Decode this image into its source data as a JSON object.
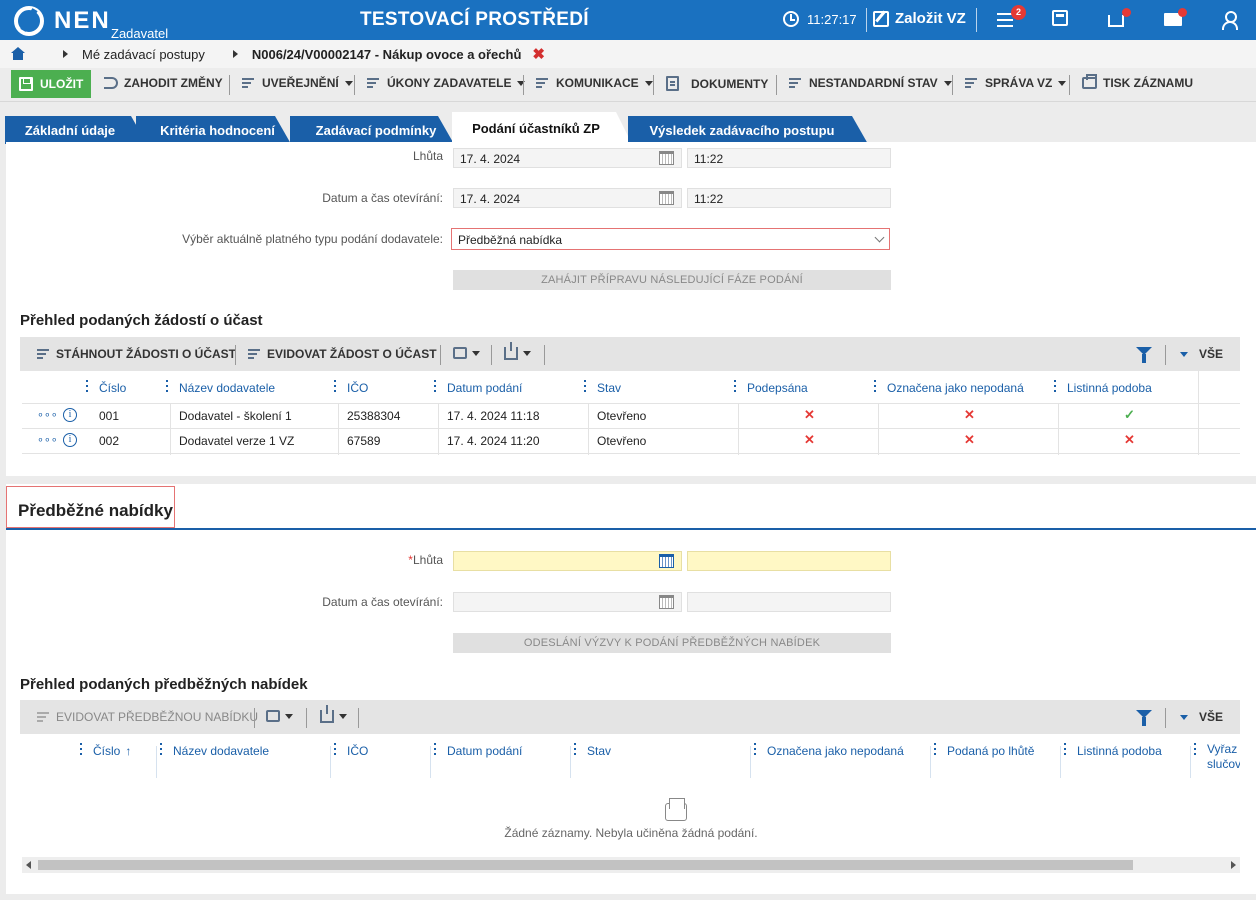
{
  "header": {
    "logo_text": "NEN",
    "logo_sub": "Zadavatel",
    "env_title": "TESTOVACÍ PROSTŘEDÍ",
    "time": "11:27:17",
    "create_label": "Založit VZ",
    "notifications_count": "2"
  },
  "breadcrumb": {
    "items": [
      "Mé zadávací postupy",
      "N006/24/V00002147 - Nákup ovoce a ořechů"
    ],
    "close_symbol": "✖"
  },
  "toolbar": {
    "save": "ULOŽIT",
    "discard": "ZAHODIT ZMĚNY",
    "publish": "UVEŘEJNĚNÍ",
    "actions": "ÚKONY ZADAVATELE",
    "communication": "KOMUNIKACE",
    "documents": "DOKUMENTY",
    "nonstandard": "NESTANDARDNÍ STAV",
    "management": "SPRÁVA VZ",
    "print": "TISK ZÁZNAMU"
  },
  "tabs": [
    "Základní údaje",
    "Kritéria hodnocení",
    "Zadávací podmínky",
    "Podání účastníků ZP",
    "Výsledek zadávacího postupu"
  ],
  "active_tab": "Podání účastníků ZP",
  "phase1": {
    "deadline_label": "Lhůta",
    "deadline_date": "17. 4. 2024",
    "deadline_time": "11:22",
    "opening_label": "Datum a čas otevírání:",
    "opening_date": "17. 4. 2024",
    "opening_time": "11:22",
    "type_label": "Výběr aktuálně platného typu podání dodavatele:",
    "type_value": "Předběžná nabídka",
    "next_phase_button": "ZAHÁJIT PŘÍPRAVU NÁSLEDUJÍCÍ FÁZE PODÁNÍ"
  },
  "requests_grid": {
    "title": "Přehled podaných žádostí o účast",
    "download_button": "STÁHNOUT ŽÁDOSTI O ÚČAST",
    "register_button": "EVIDOVAT ŽÁDOST O ÚČAST",
    "all_label": "VŠE",
    "columns": [
      "Číslo",
      "Název dodavatele",
      "IČO",
      "Datum podání",
      "Stav",
      "Podepsána",
      "Označena jako nepodaná",
      "Listinná podoba"
    ],
    "rows": [
      {
        "number": "001",
        "supplier": "Dodavatel - školení 1",
        "ico": "25388304",
        "date": "17. 4. 2024 11:18",
        "state": "Otevřeno",
        "signed": "✕",
        "not_submitted": "✕",
        "paper": "✓"
      },
      {
        "number": "002",
        "supplier": "Dodavatel verze 1 VZ",
        "ico": "67589",
        "date": "17. 4. 2024 11:20",
        "state": "Otevřeno",
        "signed": "✕",
        "not_submitted": "✕",
        "paper": "✕"
      }
    ],
    "row_menu_symbol": "∘∘∘",
    "info_symbol": "i"
  },
  "phase2": {
    "title": "Předběžné nabídky",
    "required_mark": "*",
    "deadline_label": "Lhůta",
    "opening_label": "Datum a čas otevírání:",
    "send_button": "ODESLÁNÍ VÝZVY K PODÁNÍ PŘEDBĚŽNÝCH NABÍDEK"
  },
  "offers_grid": {
    "title": "Přehled podaných předběžných nabídek",
    "register_button": "EVIDOVAT PŘEDBĚŽNOU NABÍDKU",
    "all_label": "VŠE",
    "columns": [
      "Číslo",
      "Název dodavatele",
      "IČO",
      "Datum podání",
      "Stav",
      "Označena jako nepodaná",
      "Podaná po lhůtě",
      "Listinná podoba",
      "Vyřaz",
      "slučov"
    ],
    "sort_symbol": "↑",
    "empty_text": "Žádné záznamy. Nebyla učiněna žádná podání."
  },
  "colors": {
    "header_blue": "#1a71c0",
    "tab_blue": "#1a5fa8",
    "save_green": "#4caf50",
    "error_red": "#e53935"
  }
}
